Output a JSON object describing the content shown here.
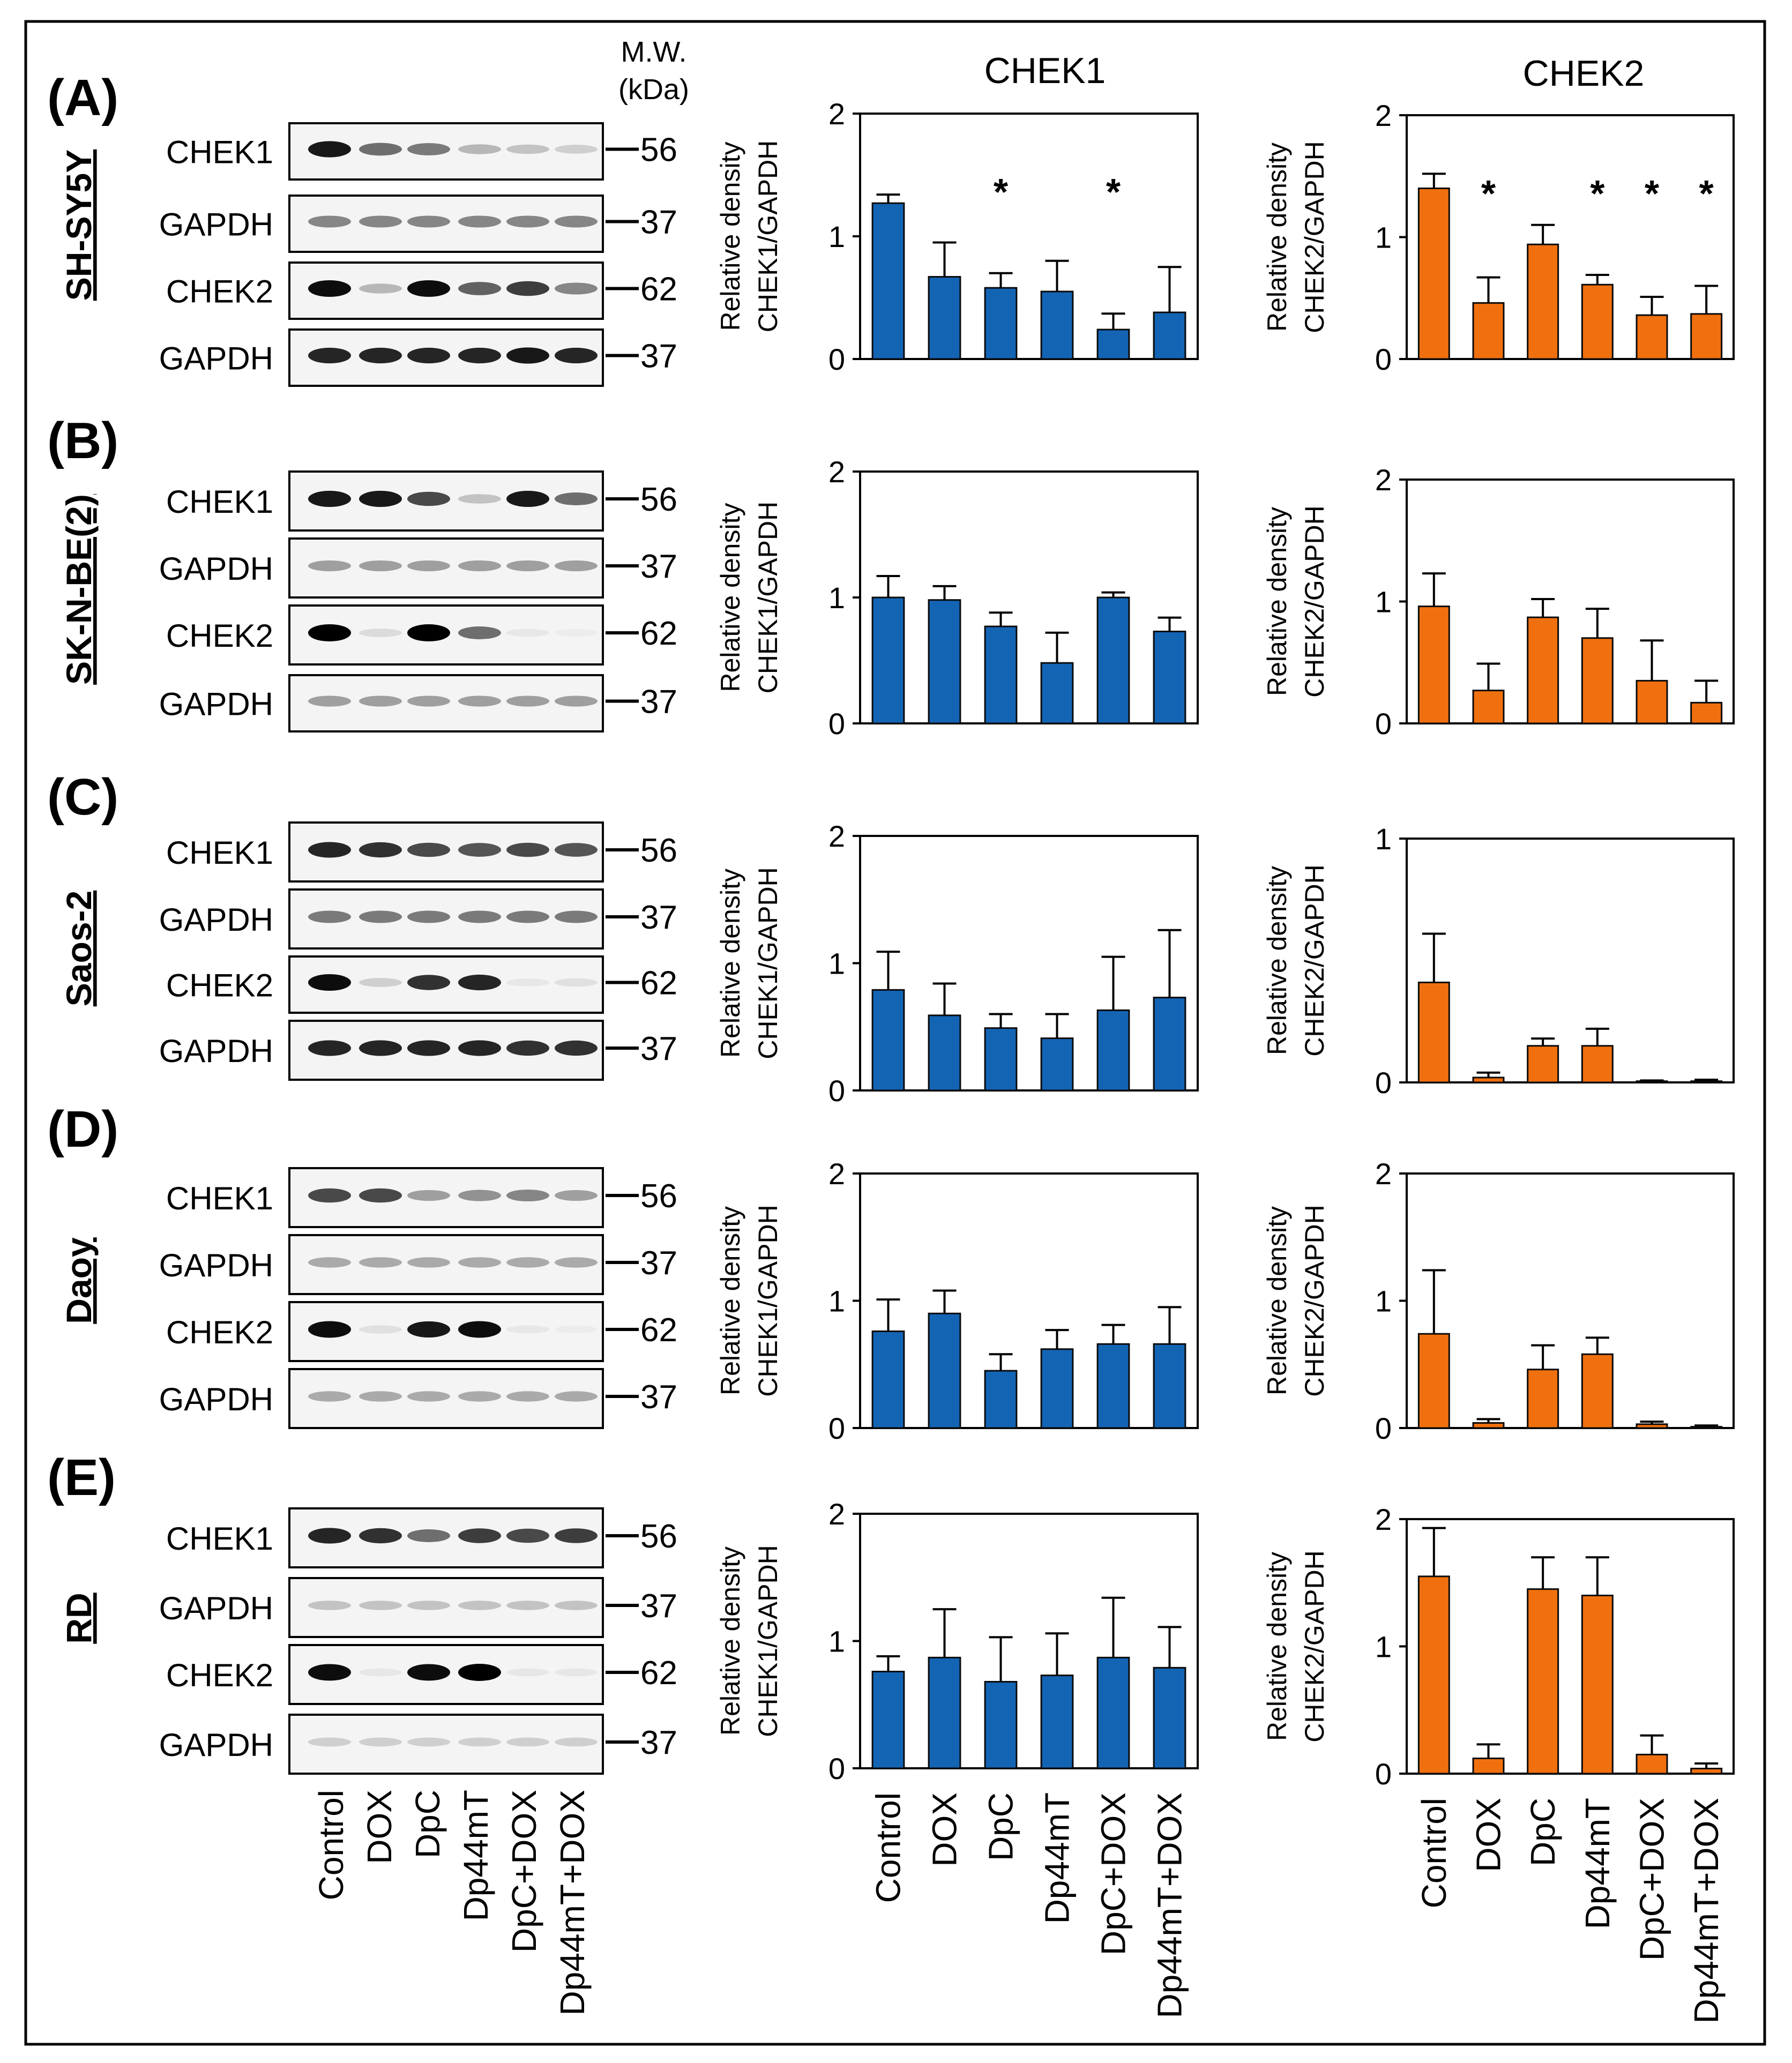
{
  "colors": {
    "chek1_bar": "#1464b4",
    "chek2_bar": "#f0700f",
    "bar_edge": "#0a0a0a"
  },
  "column_titles": [
    "CHEK1",
    "CHEK2"
  ],
  "mw_label_line1": "M.W.",
  "mw_label_line2": "(kDa)",
  "y_axis_label_line1": "Relative density",
  "y_axis_label_line2_chek1": "CHEK1/GAPDH",
  "y_axis_label_line2_chek2": "CHEK2/GAPDH",
  "lane_labels": [
    "Control",
    "DOX",
    "DpC",
    "Dp44mT",
    "DpC+DOX",
    "Dp44mT+DOX"
  ],
  "panels": [
    {
      "letter": "(A)",
      "cell_line": "SH-SY5Y",
      "blots": [
        {
          "label": "CHEK1",
          "mw": "56"
        },
        {
          "label": "GAPDH",
          "mw": "37"
        },
        {
          "label": "CHEK2",
          "mw": "62"
        },
        {
          "label": "GAPDH",
          "mw": "37"
        }
      ]
    },
    {
      "letter": "(B)",
      "cell_line": "SK-N-BE(2)",
      "blots": [
        {
          "label": "CHEK1",
          "mw": "56"
        },
        {
          "label": "GAPDH",
          "mw": "37"
        },
        {
          "label": "CHEK2",
          "mw": "62"
        },
        {
          "label": "GAPDH",
          "mw": "37"
        }
      ]
    },
    {
      "letter": "(C)",
      "cell_line": "Saos-2",
      "blots": [
        {
          "label": "CHEK1",
          "mw": "56"
        },
        {
          "label": "GAPDH",
          "mw": "37"
        },
        {
          "label": "CHEK2",
          "mw": "62"
        },
        {
          "label": "GAPDH",
          "mw": "37"
        }
      ]
    },
    {
      "letter": "(D)",
      "cell_line": "Daoy",
      "blots": [
        {
          "label": "CHEK1",
          "mw": "56"
        },
        {
          "label": "GAPDH",
          "mw": "37"
        },
        {
          "label": "CHEK2",
          "mw": "62"
        },
        {
          "label": "GAPDH",
          "mw": "37"
        }
      ]
    },
    {
      "letter": "(E)",
      "cell_line": "RD",
      "blots": [
        {
          "label": "CHEK1",
          "mw": "56"
        },
        {
          "label": "GAPDH",
          "mw": "37"
        },
        {
          "label": "CHEK2",
          "mw": "62"
        },
        {
          "label": "GAPDH",
          "mw": "37"
        }
      ]
    }
  ],
  "chart_data": [
    {
      "type": "bar",
      "panel": "(A)",
      "target": "CHEK1",
      "categories": [
        "Control",
        "DOX",
        "DpC",
        "Dp44mT",
        "DpC+DOX",
        "Dp44mT+DOX"
      ],
      "values": [
        1.27,
        0.67,
        0.58,
        0.55,
        0.24,
        0.38
      ],
      "errors": [
        0.07,
        0.28,
        0.12,
        0.25,
        0.13,
        0.37
      ],
      "significant": [
        false,
        false,
        true,
        false,
        true,
        false
      ],
      "ylim": [
        0,
        2
      ],
      "yticks": [
        "0",
        "1",
        "2"
      ],
      "ylabel": "Relative density CHEK1/GAPDH"
    },
    {
      "type": "bar",
      "panel": "(A)",
      "target": "CHEK2",
      "categories": [
        "Control",
        "DOX",
        "DpC",
        "Dp44mT",
        "DpC+DOX",
        "Dp44mT+DOX"
      ],
      "values": [
        1.4,
        0.46,
        0.94,
        0.61,
        0.36,
        0.37
      ],
      "errors": [
        0.12,
        0.21,
        0.16,
        0.08,
        0.15,
        0.23
      ],
      "significant": [
        false,
        true,
        false,
        true,
        true,
        true
      ],
      "ylim": [
        0,
        2
      ],
      "yticks": [
        "0",
        "1",
        "2"
      ],
      "ylabel": "Relative density CHEK2/GAPDH"
    },
    {
      "type": "bar",
      "panel": "(B)",
      "target": "CHEK1",
      "categories": [
        "Control",
        "DOX",
        "DpC",
        "Dp44mT",
        "DpC+DOX",
        "Dp44mT+DOX"
      ],
      "values": [
        1.0,
        0.98,
        0.77,
        0.48,
        1.0,
        0.73
      ],
      "errors": [
        0.17,
        0.11,
        0.11,
        0.24,
        0.04,
        0.11
      ],
      "significant": [
        false,
        false,
        false,
        false,
        false,
        false
      ],
      "ylim": [
        0,
        2
      ],
      "yticks": [
        "0",
        "1",
        "2"
      ],
      "ylabel": "Relative density CHEK1/GAPDH"
    },
    {
      "type": "bar",
      "panel": "(B)",
      "target": "CHEK2",
      "categories": [
        "Control",
        "DOX",
        "DpC",
        "Dp44mT",
        "DpC+DOX",
        "Dp44mT+DOX"
      ],
      "values": [
        0.96,
        0.27,
        0.87,
        0.7,
        0.35,
        0.17
      ],
      "errors": [
        0.27,
        0.22,
        0.15,
        0.24,
        0.33,
        0.18
      ],
      "significant": [
        false,
        false,
        false,
        false,
        false,
        false
      ],
      "ylim": [
        0,
        2
      ],
      "yticks": [
        "0",
        "1",
        "2"
      ],
      "ylabel": "Relative density CHEK2/GAPDH"
    },
    {
      "type": "bar",
      "panel": "(C)",
      "target": "CHEK1",
      "categories": [
        "Control",
        "DOX",
        "DpC",
        "Dp44mT",
        "DpC+DOX",
        "Dp44mT+DOX"
      ],
      "values": [
        0.79,
        0.59,
        0.49,
        0.41,
        0.63,
        0.73
      ],
      "errors": [
        0.3,
        0.25,
        0.11,
        0.19,
        0.42,
        0.53
      ],
      "significant": [
        false,
        false,
        false,
        false,
        false,
        false
      ],
      "ylim": [
        0,
        2
      ],
      "yticks": [
        "0",
        "1",
        "2"
      ],
      "ylabel": "Relative density CHEK1/GAPDH"
    },
    {
      "type": "bar",
      "panel": "(C)",
      "target": "CHEK2",
      "categories": [
        "Control",
        "DOX",
        "DpC",
        "Dp44mT",
        "DpC+DOX",
        "Dp44mT+DOX"
      ],
      "values": [
        0.41,
        0.02,
        0.15,
        0.15,
        0.005,
        0.005
      ],
      "errors": [
        0.2,
        0.02,
        0.03,
        0.07,
        0.003,
        0.006
      ],
      "significant": [
        false,
        false,
        false,
        false,
        false,
        false
      ],
      "ylim": [
        0,
        1
      ],
      "yticks": [
        "0",
        "1"
      ],
      "ylabel": "Relative density CHEK2/GAPDH"
    },
    {
      "type": "bar",
      "panel": "(D)",
      "target": "CHEK1",
      "categories": [
        "Control",
        "DOX",
        "DpC",
        "Dp44mT",
        "DpC+DOX",
        "Dp44mT+DOX"
      ],
      "values": [
        0.76,
        0.9,
        0.45,
        0.62,
        0.66,
        0.66
      ],
      "errors": [
        0.25,
        0.18,
        0.13,
        0.15,
        0.15,
        0.29
      ],
      "significant": [
        false,
        false,
        false,
        false,
        false,
        false
      ],
      "ylim": [
        0,
        2
      ],
      "yticks": [
        "0",
        "1",
        "2"
      ],
      "ylabel": "Relative density CHEK1/GAPDH"
    },
    {
      "type": "bar",
      "panel": "(D)",
      "target": "CHEK2",
      "categories": [
        "Control",
        "DOX",
        "DpC",
        "Dp44mT",
        "DpC+DOX",
        "Dp44mT+DOX"
      ],
      "values": [
        0.74,
        0.04,
        0.46,
        0.58,
        0.03,
        0.01
      ],
      "errors": [
        0.5,
        0.03,
        0.19,
        0.13,
        0.02,
        0.01
      ],
      "significant": [
        false,
        false,
        false,
        false,
        false,
        false
      ],
      "ylim": [
        0,
        2
      ],
      "yticks": [
        "0",
        "1",
        "2"
      ],
      "ylabel": "Relative density CHEK2/GAPDH"
    },
    {
      "type": "bar",
      "panel": "(E)",
      "target": "CHEK1",
      "categories": [
        "Control",
        "DOX",
        "DpC",
        "Dp44mT",
        "DpC+DOX",
        "Dp44mT+DOX"
      ],
      "values": [
        0.76,
        0.87,
        0.68,
        0.73,
        0.87,
        0.79
      ],
      "errors": [
        0.12,
        0.38,
        0.35,
        0.33,
        0.47,
        0.32
      ],
      "significant": [
        false,
        false,
        false,
        false,
        false,
        false
      ],
      "ylim": [
        0,
        2
      ],
      "yticks": [
        "0",
        "1",
        "2"
      ],
      "ylabel": "Relative density CHEK1/GAPDH"
    },
    {
      "type": "bar",
      "panel": "(E)",
      "target": "CHEK2",
      "categories": [
        "Control",
        "DOX",
        "DpC",
        "Dp44mT",
        "DpC+DOX",
        "Dp44mT+DOX"
      ],
      "values": [
        1.55,
        0.12,
        1.45,
        1.4,
        0.15,
        0.04
      ],
      "errors": [
        0.38,
        0.11,
        0.25,
        0.3,
        0.15,
        0.04
      ],
      "significant": [
        false,
        false,
        false,
        false,
        false,
        false
      ],
      "ylim": [
        0,
        2
      ],
      "yticks": [
        "0",
        "1",
        "2"
      ],
      "ylabel": "Relative density CHEK2/GAPDH"
    }
  ]
}
